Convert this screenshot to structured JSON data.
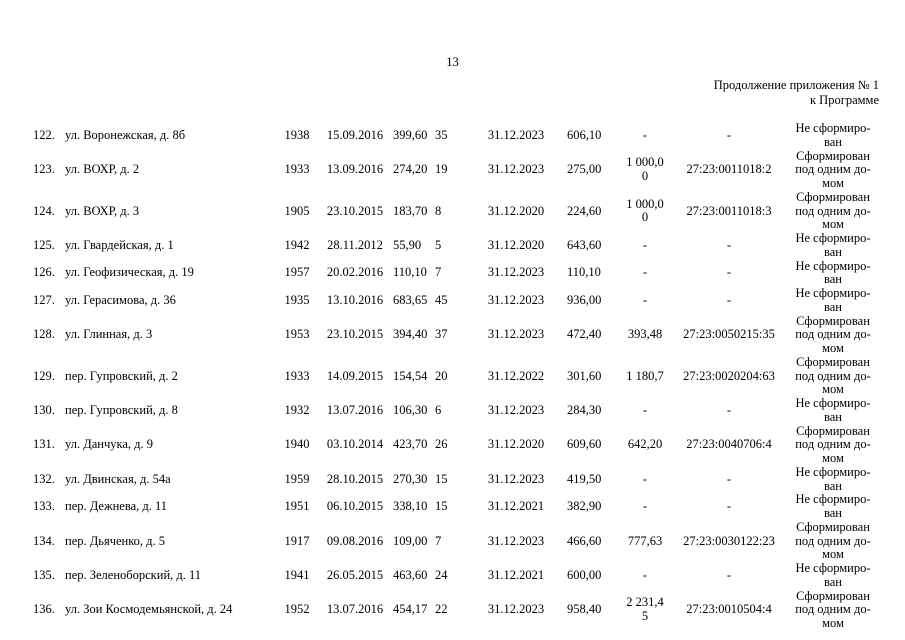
{
  "page": {
    "number": "13",
    "header_line1": "Продолжение приложения № 1",
    "header_line2": "к Программе"
  },
  "table": {
    "rows": [
      {
        "num": "122.",
        "address": "ул. Воронежская, д. 8б",
        "year": "1938",
        "date1": "15.09.2016",
        "area": "399,60",
        "count": "35",
        "date2": "31.12.2023",
        "val1": "606,10",
        "val2": "-",
        "cadastral": "-",
        "status": "Не сформиро-\nван"
      },
      {
        "num": "123.",
        "address": "ул. ВОХР, д. 2",
        "year": "1933",
        "date1": "13.09.2016",
        "area": "274,20",
        "count": "19",
        "date2": "31.12.2023",
        "val1": "275,00",
        "val2": "1 000,0\n0",
        "cadastral": "27:23:0011018:2",
        "status": "Сформирован\nпод одним до-\nмом"
      },
      {
        "num": "124.",
        "address": "ул. ВОХР, д. 3",
        "year": "1905",
        "date1": "23.10.2015",
        "area": "183,70",
        "count": "8",
        "date2": "31.12.2020",
        "val1": "224,60",
        "val2": "1 000,0\n0",
        "cadastral": "27:23:0011018:3",
        "status": "Сформирован\nпод одним до-\nмом"
      },
      {
        "num": "125.",
        "address": "ул. Гвардейская, д. 1",
        "year": "1942",
        "date1": "28.11.2012",
        "area": "55,90",
        "count": "5",
        "date2": "31.12.2020",
        "val1": "643,60",
        "val2": "-",
        "cadastral": "-",
        "status": "Не сформиро-\nван"
      },
      {
        "num": "126.",
        "address": "ул. Геофизическая, д. 19",
        "year": "1957",
        "date1": "20.02.2016",
        "area": "110,10",
        "count": "7",
        "date2": "31.12.2023",
        "val1": "110,10",
        "val2": "-",
        "cadastral": "-",
        "status": "Не сформиро-\nван"
      },
      {
        "num": "127.",
        "address": "ул. Герасимова, д. 36",
        "year": "1935",
        "date1": "13.10.2016",
        "area": "683,65",
        "count": "45",
        "date2": "31.12.2023",
        "val1": "936,00",
        "val2": "-",
        "cadastral": "-",
        "status": "Не сформиро-\nван"
      },
      {
        "num": "128.",
        "address": "ул. Глинная, д. 3",
        "year": "1953",
        "date1": "23.10.2015",
        "area": "394,40",
        "count": "37",
        "date2": "31.12.2023",
        "val1": "472,40",
        "val2": "393,48",
        "cadastral": "27:23:0050215:35",
        "status": "Сформирован\nпод одним до-\nмом"
      },
      {
        "num": "129.",
        "address": "пер. Гупровский, д. 2",
        "year": "1933",
        "date1": "14.09.2015",
        "area": "154,54",
        "count": "20",
        "date2": "31.12.2022",
        "val1": "301,60",
        "val2": "1 180,7",
        "cadastral": "27:23:0020204:63",
        "status": "Сформирован\nпод одним до-\nмом"
      },
      {
        "num": "130.",
        "address": "пер. Гупровский, д. 8",
        "year": "1932",
        "date1": "13.07.2016",
        "area": "106,30",
        "count": "6",
        "date2": "31.12.2023",
        "val1": "284,30",
        "val2": "-",
        "cadastral": "-",
        "status": "Не сформиро-\nван"
      },
      {
        "num": "131.",
        "address": "ул. Данчука, д. 9",
        "year": "1940",
        "date1": "03.10.2014",
        "area": "423,70",
        "count": "26",
        "date2": "31.12.2020",
        "val1": "609,60",
        "val2": "642,20",
        "cadastral": "27:23:0040706:4",
        "status": "Сформирован\nпод одним до-\nмом"
      },
      {
        "num": "132.",
        "address": "ул. Двинская, д. 54а",
        "year": "1959",
        "date1": "28.10.2015",
        "area": "270,30",
        "count": "15",
        "date2": "31.12.2023",
        "val1": "419,50",
        "val2": "-",
        "cadastral": "-",
        "status": "Не сформиро-\nван"
      },
      {
        "num": "133.",
        "address": "пер. Дежнева, д. 11",
        "year": "1951",
        "date1": "06.10.2015",
        "area": "338,10",
        "count": "15",
        "date2": "31.12.2021",
        "val1": "382,90",
        "val2": "-",
        "cadastral": "-",
        "status": "Не сформиро-\nван"
      },
      {
        "num": "134.",
        "address": "пер. Дьяченко, д. 5",
        "year": "1917",
        "date1": "09.08.2016",
        "area": "109,00",
        "count": "7",
        "date2": "31.12.2023",
        "val1": "466,60",
        "val2": "777,63",
        "cadastral": "27:23:0030122:23",
        "status": "Сформирован\nпод одним до-\nмом"
      },
      {
        "num": "135.",
        "address": "пер. Зеленоборский, д. 11",
        "year": "1941",
        "date1": "26.05.2015",
        "area": "463,60",
        "count": "24",
        "date2": "31.12.2021",
        "val1": "600,00",
        "val2": "-",
        "cadastral": "-",
        "status": "Не сформиро-\nван"
      },
      {
        "num": "136.",
        "address": "ул. Зои Космодемьянской, д. 24",
        "year": "1952",
        "date1": "13.07.2016",
        "area": "454,17",
        "count": "22",
        "date2": "31.12.2023",
        "val1": "958,40",
        "val2": "2 231,4\n5",
        "cadastral": "27:23:0010504:4",
        "status": "Сформирован\nпод одним до-\nмом"
      }
    ]
  }
}
